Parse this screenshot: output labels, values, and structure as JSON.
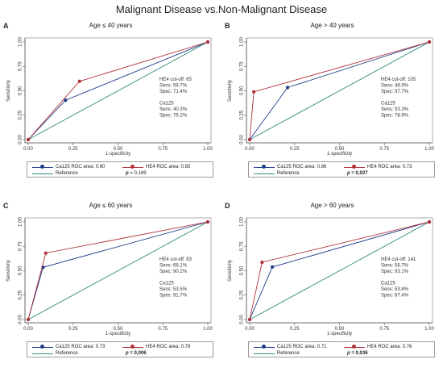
{
  "title": "Malignant Disease vs.Non-Malignant Disease",
  "colors": {
    "ca125": "#1f3c88",
    "he4": "#b0303a",
    "reference": "#2e8b7a",
    "frame": "#9a9a9a"
  },
  "axis": {
    "xlabel": "1-specificity",
    "ylabel": "Sensitivity",
    "xticks": [
      "0.00",
      "0.25",
      "0.50",
      "0.75",
      "1.00"
    ],
    "yticks": [
      "0.00",
      "0.25",
      "0.50",
      "0.75",
      "1.00"
    ]
  },
  "chart_data": [
    {
      "type": "line",
      "label": "A",
      "title": "Age ≤ 40 years",
      "xlim": [
        0,
        1
      ],
      "ylim": [
        0,
        1
      ],
      "series": [
        {
          "name": "Ca125 ROC area: 0.60",
          "x": [
            0,
            0.208,
            1
          ],
          "y": [
            0,
            0.403,
            1
          ]
        },
        {
          "name": "HE4 ROC area: 0.65",
          "x": [
            0,
            0.286,
            1
          ],
          "y": [
            0,
            0.597,
            1
          ]
        },
        {
          "name": "Reference",
          "x": [
            0,
            1
          ],
          "y": [
            0,
            1
          ]
        }
      ],
      "annotations": [
        "HE4 cut-off: 65",
        "Sens: 59.7%",
        "Spec: 71.4%",
        "",
        "Ca125",
        "Sens: 40.3%",
        "Spec: 79.2%"
      ],
      "pvalue": {
        "p": "p",
        "rest": " = 0,169"
      }
    },
    {
      "type": "line",
      "label": "B",
      "title": "Age > 40 years",
      "xlim": [
        0,
        1
      ],
      "ylim": [
        0,
        1
      ],
      "series": [
        {
          "name": "Ca125 ROC area: 0.66",
          "x": [
            0,
            0.211,
            1
          ],
          "y": [
            0,
            0.533,
            1
          ]
        },
        {
          "name": "HE4 ROC area: 0.73",
          "x": [
            0,
            0.023,
            1
          ],
          "y": [
            0,
            0.489,
            1
          ]
        },
        {
          "name": "Reference",
          "x": [
            0,
            1
          ],
          "y": [
            0,
            1
          ]
        }
      ],
      "annotations": [
        "HE4 cut-off: 105",
        "Sens: 48.9%",
        "Spec: 97.7%",
        "",
        "Ca125",
        "Sens: 53.3%",
        "Spec: 78.9%"
      ],
      "pvalue": {
        "p": "p",
        "rest": " = 0,027"
      }
    },
    {
      "type": "line",
      "label": "C",
      "title": "Age ≤ 60 years",
      "xlim": [
        0,
        1
      ],
      "ylim": [
        0,
        1
      ],
      "series": [
        {
          "name": "Ca125 ROC area: 0.73",
          "x": [
            0,
            0.083,
            1
          ],
          "y": [
            0,
            0.535,
            1
          ]
        },
        {
          "name": "HE4 ROC area: 0.79",
          "x": [
            0,
            0.098,
            1
          ],
          "y": [
            0,
            0.681,
            1
          ]
        },
        {
          "name": "Reference",
          "x": [
            0,
            1
          ],
          "y": [
            0,
            1
          ]
        }
      ],
      "annotations": [
        "HE4 cut-off: 83",
        "Sens: 68.1%",
        "Spec: 90.2%",
        "",
        "Ca125",
        "Sens: 53.5%",
        "Spec: 91.7%"
      ],
      "pvalue": {
        "p": "p",
        "rest": " = 0,006"
      }
    },
    {
      "type": "line",
      "label": "D",
      "title": "Age > 60 years",
      "xlim": [
        0,
        1
      ],
      "ylim": [
        0,
        1
      ],
      "series": [
        {
          "name": "Ca125 ROC area: 0.71",
          "x": [
            0,
            0.126,
            1
          ],
          "y": [
            0,
            0.538,
            1
          ]
        },
        {
          "name": "HE4 ROC area: 0.76",
          "x": [
            0,
            0.069,
            1
          ],
          "y": [
            0,
            0.587,
            1
          ]
        },
        {
          "name": "Reference",
          "x": [
            0,
            1
          ],
          "y": [
            0,
            1
          ]
        }
      ],
      "annotations": [
        "HE4 cut-off: 141",
        "Sens: 58.7%",
        "Spec: 93.1%",
        "",
        "Ca125",
        "Sens: 53.8%",
        "Spec: 87.4%"
      ],
      "pvalue": {
        "p": "p",
        "rest": " = 0,036"
      }
    }
  ]
}
